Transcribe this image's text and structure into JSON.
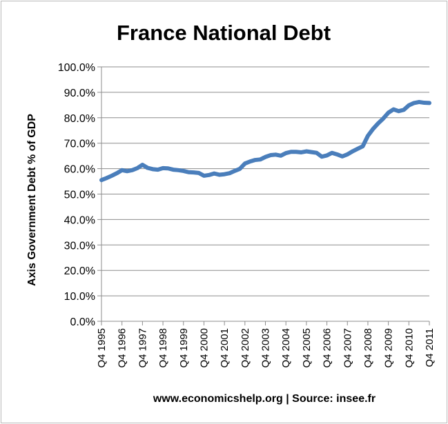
{
  "chart_data": {
    "type": "line",
    "title": "France National Debt",
    "xlabel": "www.economicshelp.org | Source: insee.fr",
    "ylabel": "Axis Government Debt % of GDP",
    "ylim": [
      0,
      100
    ],
    "y_ticks": [
      "0.0%",
      "10.0%",
      "20.0%",
      "30.0%",
      "40.0%",
      "50.0%",
      "60.0%",
      "70.0%",
      "80.0%",
      "90.0%",
      "100.0%"
    ],
    "x_ticks": [
      "Q4 1995",
      "Q4 1996",
      "Q4 1997",
      "Q4 1998",
      "Q4 1999",
      "Q4 2000",
      "Q4 2001",
      "Q4 2002",
      "Q4 2003",
      "Q4 2004",
      "Q4 2005",
      "Q4 2006",
      "Q4 2007",
      "Q4 2008",
      "Q4 2009",
      "Q4 2010",
      "Q4 2011"
    ],
    "grid": true,
    "line_color": "#4a7ebb",
    "series": [
      {
        "x": [
          "1995-Q4",
          "1996-Q1",
          "1996-Q2",
          "1996-Q3",
          "1996-Q4",
          "1997-Q1",
          "1997-Q2",
          "1997-Q3",
          "1997-Q4",
          "1998-Q1",
          "1998-Q2",
          "1998-Q3",
          "1998-Q4",
          "1999-Q1",
          "1999-Q2",
          "1999-Q3",
          "1999-Q4",
          "2000-Q1",
          "2000-Q2",
          "2000-Q3",
          "2000-Q4",
          "2001-Q1",
          "2001-Q2",
          "2001-Q3",
          "2001-Q4",
          "2002-Q1",
          "2002-Q2",
          "2002-Q3",
          "2002-Q4",
          "2003-Q1",
          "2003-Q2",
          "2003-Q3",
          "2003-Q4",
          "2004-Q1",
          "2004-Q2",
          "2004-Q3",
          "2004-Q4",
          "2005-Q1",
          "2005-Q2",
          "2005-Q3",
          "2005-Q4",
          "2006-Q1",
          "2006-Q2",
          "2006-Q3",
          "2006-Q4",
          "2007-Q1",
          "2007-Q2",
          "2007-Q3",
          "2007-Q4",
          "2008-Q1",
          "2008-Q2",
          "2008-Q3",
          "2008-Q4",
          "2009-Q1",
          "2009-Q2",
          "2009-Q3",
          "2009-Q4",
          "2010-Q1",
          "2010-Q2",
          "2010-Q3",
          "2010-Q4",
          "2011-Q1",
          "2011-Q2",
          "2011-Q3",
          "2011-Q4"
        ],
        "values": [
          55.5,
          56.3,
          57.2,
          58.2,
          59.4,
          59.0,
          59.4,
          60.2,
          61.5,
          60.3,
          59.8,
          59.6,
          60.2,
          60.1,
          59.6,
          59.4,
          59.1,
          58.6,
          58.5,
          58.3,
          57.2,
          57.5,
          58.1,
          57.6,
          57.8,
          58.2,
          59.1,
          59.9,
          62.0,
          62.8,
          63.4,
          63.6,
          64.6,
          65.3,
          65.5,
          65.1,
          66.1,
          66.6,
          66.6,
          66.4,
          66.8,
          66.5,
          66.2,
          64.7,
          65.2,
          66.2,
          65.6,
          64.8,
          65.6,
          66.8,
          67.8,
          68.8,
          72.9,
          75.6,
          77.8,
          79.7,
          82.0,
          83.3,
          82.6,
          83.1,
          84.9,
          85.8,
          86.2,
          85.9,
          85.8
        ]
      }
    ]
  }
}
